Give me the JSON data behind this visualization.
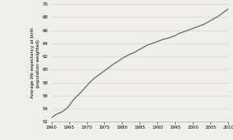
{
  "title": "",
  "ylabel": "Average life expectancy at birth\n(population-weighted)",
  "xlabel": "",
  "xlim": [
    1960,
    2010
  ],
  "ylim": [
    52,
    70
  ],
  "yticks": [
    52,
    54,
    56,
    58,
    60,
    62,
    64,
    66,
    68,
    70
  ],
  "xticks": [
    1960,
    1965,
    1970,
    1975,
    1980,
    1985,
    1990,
    1995,
    2000,
    2005,
    2010
  ],
  "line_color": "#666666",
  "background_color": "#f0eeeb",
  "grid_color": "#d8d5d0",
  "years": [
    1960,
    1961,
    1962,
    1963,
    1964,
    1965,
    1966,
    1967,
    1968,
    1969,
    1970,
    1971,
    1972,
    1973,
    1974,
    1975,
    1976,
    1977,
    1978,
    1979,
    1980,
    1981,
    1982,
    1983,
    1984,
    1985,
    1986,
    1987,
    1988,
    1989,
    1990,
    1991,
    1992,
    1993,
    1994,
    1995,
    1996,
    1997,
    1998,
    1999,
    2000,
    2001,
    2002,
    2003,
    2004,
    2005,
    2006,
    2007,
    2008,
    2009,
    2010
  ],
  "values": [
    52.6,
    53.0,
    53.3,
    53.5,
    53.9,
    54.4,
    55.2,
    55.8,
    56.3,
    56.9,
    57.5,
    58.1,
    58.6,
    59.0,
    59.4,
    59.8,
    60.2,
    60.6,
    61.0,
    61.3,
    61.7,
    62.0,
    62.3,
    62.5,
    62.8,
    63.1,
    63.4,
    63.7,
    63.9,
    64.1,
    64.3,
    64.5,
    64.7,
    64.8,
    65.0,
    65.2,
    65.5,
    65.7,
    65.9,
    66.1,
    66.3,
    66.5,
    66.7,
    66.9,
    67.2,
    67.5,
    67.8,
    68.1,
    68.5,
    68.9,
    69.3
  ],
  "ylabel_fontsize": 4.0,
  "tick_fontsize": 4.0,
  "linewidth": 0.9
}
